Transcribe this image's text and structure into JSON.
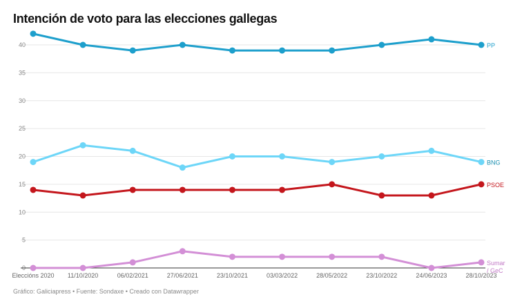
{
  "chart_data": {
    "type": "line",
    "title": "Intención de voto para las elecciones gallegas",
    "categories": [
      "Eleccións 2020",
      "11/10/2020",
      "06/02/2021",
      "27/06/2021",
      "23/10/2021",
      "03/03/2022",
      "28/05/2022",
      "23/10/2022",
      "24/06/2023",
      "28/10/2023"
    ],
    "ylim": [
      0,
      42
    ],
    "yticks": [
      0,
      5,
      10,
      15,
      20,
      25,
      30,
      35,
      40
    ],
    "grid": true,
    "legend": "direct labels at line ends",
    "series": [
      {
        "name": "PP",
        "color": "#1d9fcc",
        "label_color": "#1d9fcc",
        "values": [
          42,
          40,
          39,
          40,
          39,
          39,
          39,
          40,
          41,
          40
        ]
      },
      {
        "name": "BNG",
        "color": "#6dd6f8",
        "label_color": "#1a8fb0",
        "values": [
          19,
          22,
          21,
          18,
          20,
          20,
          19,
          20,
          21,
          19
        ]
      },
      {
        "name": "PSOE",
        "color": "#c4161c",
        "label_color": "#c4161c",
        "values": [
          14,
          13,
          14,
          14,
          14,
          14,
          15,
          13,
          13,
          15
        ]
      },
      {
        "name": "Sumar / GeC",
        "color": "#d38fd6",
        "label_color": "#c27ac6",
        "values": [
          0,
          0,
          1,
          3,
          2,
          2,
          2,
          2,
          0,
          1
        ]
      }
    ]
  },
  "footer": "Gráfico: Galiciapress • Fuente: Sondaxe • Creado con Datawrapper"
}
